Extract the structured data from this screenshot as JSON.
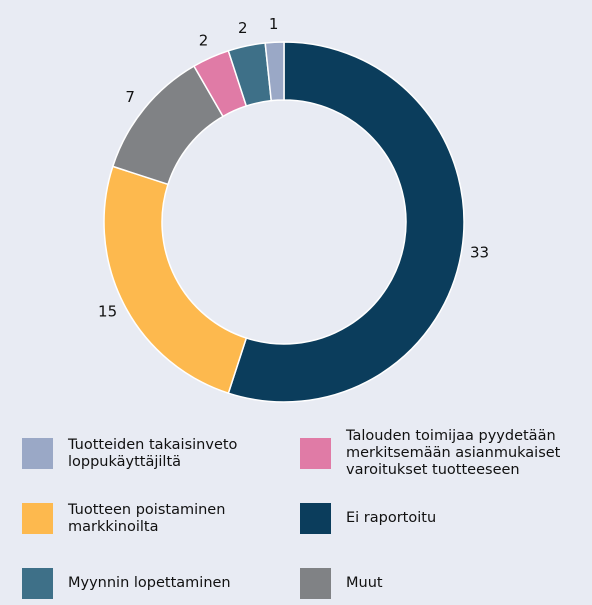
{
  "chart_data": {
    "type": "donut",
    "categories": [
      "Ei raportoitu",
      "Tuotteen poistaminen markkinoilta",
      "Muut",
      "Talouden toimijaa pyydetään merkitsemään asianmukaiset varoitukset tuotteeseen",
      "Myynnin lopettaminen",
      "Tuotteiden takaisinveto loppukäyttäjiltä"
    ],
    "values": [
      33,
      15,
      7,
      2,
      2,
      1
    ],
    "colors": [
      "#0b3d5c",
      "#fdb94e",
      "#808285",
      "#e07ba6",
      "#3e7088",
      "#9aa8c6"
    ],
    "legend": "bottom"
  }
}
